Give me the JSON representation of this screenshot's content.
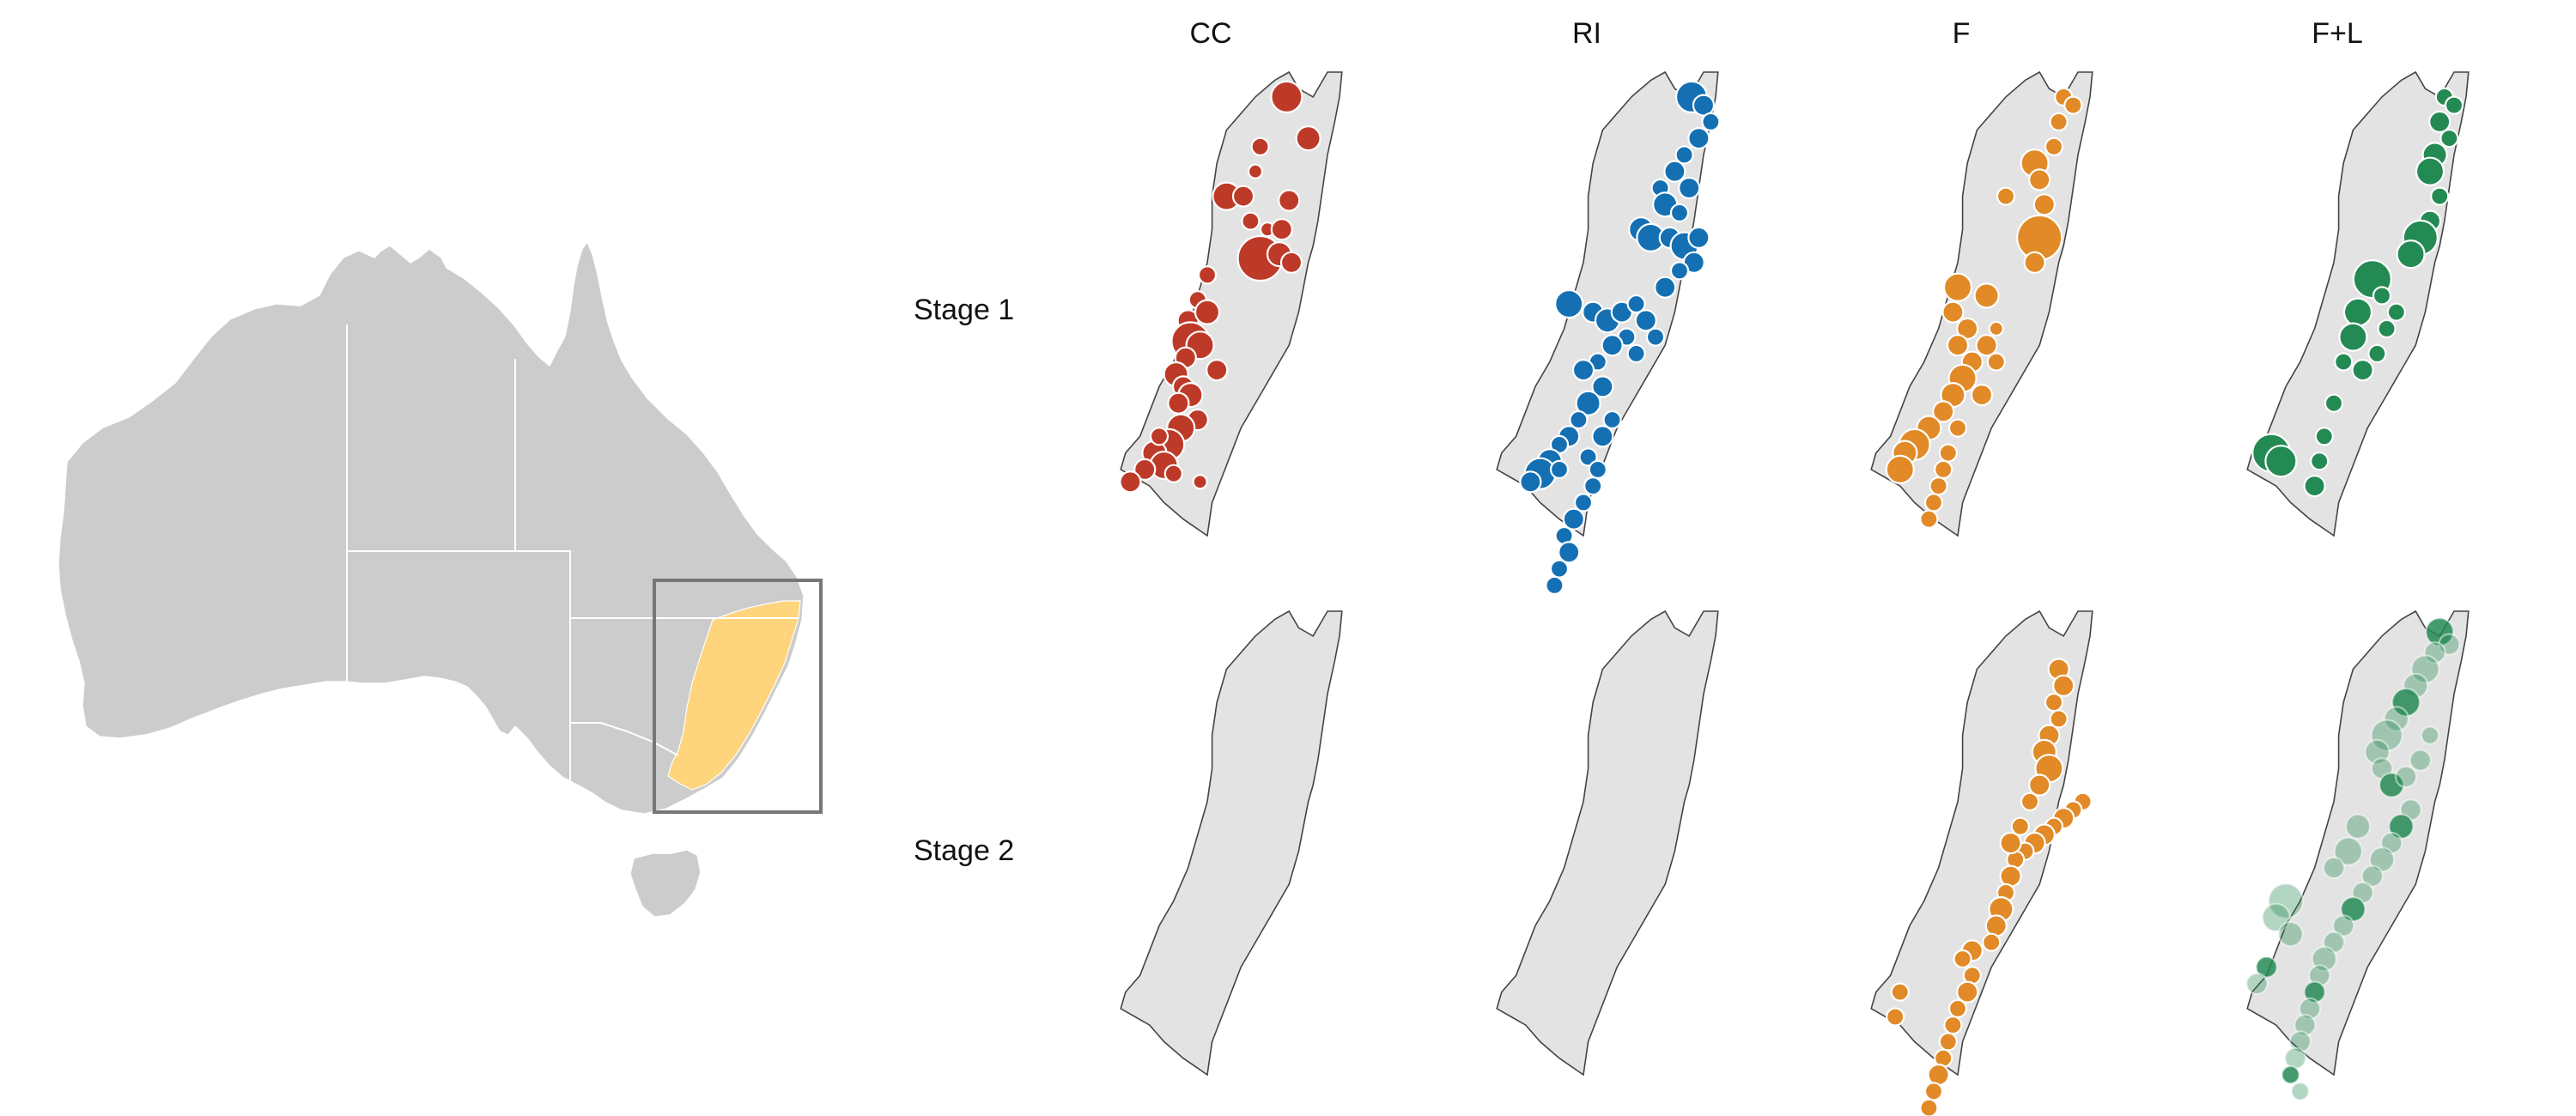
{
  "columns": [
    {
      "key": "cc",
      "label": "CC",
      "color": "#be3a28"
    },
    {
      "key": "ri",
      "label": "RI",
      "color": "#1470b3"
    },
    {
      "key": "f",
      "label": "F",
      "color": "#e18a27"
    },
    {
      "key": "fl",
      "label": "F+L",
      "color": "#248a53"
    }
  ],
  "rows": [
    {
      "key": "stage1",
      "label": "Stage 1"
    },
    {
      "key": "stage2",
      "label": "Stage 2"
    }
  ],
  "inset": {
    "highlight_color": "#fed47c",
    "land_color": "#cccccc",
    "box_color": "#777777"
  },
  "point_layers": {
    "stage1": {
      "cc": [
        [
          0.73,
          0.06,
          18
        ],
        [
          0.82,
          0.16,
          14
        ],
        [
          0.62,
          0.18,
          10
        ],
        [
          0.6,
          0.24,
          8
        ],
        [
          0.48,
          0.3,
          16
        ],
        [
          0.55,
          0.3,
          12
        ],
        [
          0.74,
          0.31,
          12
        ],
        [
          0.58,
          0.36,
          10
        ],
        [
          0.65,
          0.38,
          8
        ],
        [
          0.71,
          0.38,
          12
        ],
        [
          0.62,
          0.45,
          26
        ],
        [
          0.7,
          0.44,
          14
        ],
        [
          0.75,
          0.46,
          12
        ],
        [
          0.4,
          0.49,
          10
        ],
        [
          0.36,
          0.55,
          10
        ],
        [
          0.32,
          0.6,
          12
        ],
        [
          0.4,
          0.58,
          14
        ],
        [
          0.33,
          0.65,
          22
        ],
        [
          0.37,
          0.66,
          16
        ],
        [
          0.31,
          0.69,
          12
        ],
        [
          0.27,
          0.73,
          14
        ],
        [
          0.3,
          0.76,
          12
        ],
        [
          0.33,
          0.78,
          14
        ],
        [
          0.28,
          0.8,
          12
        ],
        [
          0.44,
          0.72,
          12
        ],
        [
          0.36,
          0.84,
          12
        ],
        [
          0.29,
          0.86,
          16
        ],
        [
          0.24,
          0.9,
          18
        ],
        [
          0.18,
          0.92,
          14
        ],
        [
          0.22,
          0.95,
          16
        ],
        [
          0.14,
          0.96,
          12
        ],
        [
          0.08,
          0.99,
          12
        ],
        [
          0.37,
          0.99,
          8
        ],
        [
          0.2,
          0.88,
          10
        ],
        [
          0.26,
          0.97,
          10
        ]
      ],
      "ri": [
        [
          0.85,
          0.06,
          18
        ],
        [
          0.9,
          0.08,
          12
        ],
        [
          0.93,
          0.12,
          10
        ],
        [
          0.88,
          0.16,
          12
        ],
        [
          0.82,
          0.2,
          10
        ],
        [
          0.78,
          0.24,
          12
        ],
        [
          0.72,
          0.28,
          10
        ],
        [
          0.74,
          0.32,
          14
        ],
        [
          0.84,
          0.28,
          12
        ],
        [
          0.8,
          0.34,
          10
        ],
        [
          0.64,
          0.38,
          14
        ],
        [
          0.68,
          0.4,
          16
        ],
        [
          0.76,
          0.4,
          12
        ],
        [
          0.82,
          0.42,
          16
        ],
        [
          0.88,
          0.4,
          12
        ],
        [
          0.86,
          0.46,
          12
        ],
        [
          0.8,
          0.48,
          10
        ],
        [
          0.74,
          0.52,
          12
        ],
        [
          0.34,
          0.56,
          16
        ],
        [
          0.44,
          0.58,
          12
        ],
        [
          0.5,
          0.6,
          14
        ],
        [
          0.56,
          0.58,
          12
        ],
        [
          0.62,
          0.56,
          10
        ],
        [
          0.66,
          0.6,
          12
        ],
        [
          0.58,
          0.64,
          10
        ],
        [
          0.52,
          0.66,
          12
        ],
        [
          0.46,
          0.7,
          10
        ],
        [
          0.4,
          0.72,
          12
        ],
        [
          0.48,
          0.76,
          12
        ],
        [
          0.42,
          0.8,
          14
        ],
        [
          0.38,
          0.84,
          10
        ],
        [
          0.34,
          0.88,
          12
        ],
        [
          0.3,
          0.9,
          10
        ],
        [
          0.26,
          0.94,
          14
        ],
        [
          0.22,
          0.97,
          18
        ],
        [
          0.18,
          0.99,
          12
        ],
        [
          0.3,
          0.96,
          10
        ],
        [
          0.42,
          0.93,
          10
        ],
        [
          0.48,
          0.88,
          12
        ],
        [
          0.52,
          0.84,
          10
        ],
        [
          0.46,
          0.96,
          10
        ],
        [
          0.44,
          1.0,
          10
        ],
        [
          0.4,
          1.04,
          10
        ],
        [
          0.36,
          1.08,
          12
        ],
        [
          0.32,
          1.12,
          10
        ],
        [
          0.34,
          1.16,
          12
        ],
        [
          0.3,
          1.2,
          10
        ],
        [
          0.28,
          1.24,
          10
        ],
        [
          0.62,
          0.68,
          10
        ],
        [
          0.7,
          0.64,
          10
        ]
      ],
      "f": [
        [
          0.84,
          0.06,
          10
        ],
        [
          0.88,
          0.08,
          10
        ],
        [
          0.82,
          0.12,
          10
        ],
        [
          0.8,
          0.18,
          10
        ],
        [
          0.72,
          0.22,
          16
        ],
        [
          0.74,
          0.26,
          12
        ],
        [
          0.6,
          0.3,
          10
        ],
        [
          0.76,
          0.32,
          12
        ],
        [
          0.74,
          0.4,
          26
        ],
        [
          0.72,
          0.46,
          12
        ],
        [
          0.4,
          0.52,
          16
        ],
        [
          0.52,
          0.54,
          14
        ],
        [
          0.38,
          0.58,
          12
        ],
        [
          0.44,
          0.62,
          12
        ],
        [
          0.4,
          0.66,
          12
        ],
        [
          0.46,
          0.7,
          12
        ],
        [
          0.42,
          0.74,
          16
        ],
        [
          0.38,
          0.78,
          14
        ],
        [
          0.34,
          0.82,
          12
        ],
        [
          0.28,
          0.86,
          14
        ],
        [
          0.22,
          0.9,
          18
        ],
        [
          0.18,
          0.92,
          14
        ],
        [
          0.16,
          0.96,
          16
        ],
        [
          0.5,
          0.78,
          12
        ],
        [
          0.52,
          0.66,
          12
        ],
        [
          0.56,
          0.7,
          10
        ],
        [
          0.4,
          0.86,
          10
        ],
        [
          0.36,
          0.92,
          10
        ],
        [
          0.34,
          0.96,
          10
        ],
        [
          0.32,
          1.0,
          10
        ],
        [
          0.3,
          1.04,
          10
        ],
        [
          0.28,
          1.08,
          10
        ],
        [
          0.56,
          0.62,
          8
        ]
      ],
      "fl": [
        [
          0.86,
          0.06,
          10
        ],
        [
          0.9,
          0.08,
          10
        ],
        [
          0.84,
          0.12,
          12
        ],
        [
          0.88,
          0.16,
          10
        ],
        [
          0.82,
          0.2,
          14
        ],
        [
          0.8,
          0.24,
          16
        ],
        [
          0.84,
          0.3,
          10
        ],
        [
          0.8,
          0.36,
          12
        ],
        [
          0.76,
          0.4,
          20
        ],
        [
          0.72,
          0.44,
          16
        ],
        [
          0.56,
          0.5,
          22
        ],
        [
          0.6,
          0.54,
          10
        ],
        [
          0.5,
          0.58,
          16
        ],
        [
          0.48,
          0.64,
          16
        ],
        [
          0.44,
          0.7,
          10
        ],
        [
          0.52,
          0.72,
          12
        ],
        [
          0.62,
          0.62,
          10
        ],
        [
          0.66,
          0.58,
          10
        ],
        [
          0.14,
          0.92,
          22
        ],
        [
          0.18,
          0.94,
          18
        ],
        [
          0.4,
          0.8,
          10
        ],
        [
          0.36,
          0.88,
          10
        ],
        [
          0.34,
          0.94,
          10
        ],
        [
          0.32,
          1.0,
          12
        ],
        [
          0.58,
          0.68,
          10
        ]
      ]
    },
    "stage2": {
      "cc": [],
      "ri": [],
      "f": [
        [
          0.82,
          0.14,
          12
        ],
        [
          0.84,
          0.18,
          12
        ],
        [
          0.8,
          0.22,
          10
        ],
        [
          0.82,
          0.26,
          10
        ],
        [
          0.78,
          0.3,
          12
        ],
        [
          0.76,
          0.34,
          14
        ],
        [
          0.78,
          0.38,
          16
        ],
        [
          0.74,
          0.42,
          12
        ],
        [
          0.7,
          0.46,
          10
        ],
        [
          0.92,
          0.46,
          10
        ],
        [
          0.88,
          0.48,
          10
        ],
        [
          0.84,
          0.5,
          12
        ],
        [
          0.8,
          0.52,
          10
        ],
        [
          0.76,
          0.54,
          12
        ],
        [
          0.72,
          0.56,
          12
        ],
        [
          0.68,
          0.58,
          10
        ],
        [
          0.64,
          0.6,
          10
        ],
        [
          0.62,
          0.64,
          12
        ],
        [
          0.6,
          0.68,
          10
        ],
        [
          0.58,
          0.72,
          14
        ],
        [
          0.56,
          0.76,
          12
        ],
        [
          0.54,
          0.8,
          10
        ],
        [
          0.46,
          0.82,
          12
        ],
        [
          0.42,
          0.84,
          10
        ],
        [
          0.46,
          0.88,
          10
        ],
        [
          0.44,
          0.92,
          12
        ],
        [
          0.4,
          0.96,
          10
        ],
        [
          0.38,
          1.0,
          10
        ],
        [
          0.36,
          1.04,
          10
        ],
        [
          0.34,
          1.08,
          10
        ],
        [
          0.32,
          1.12,
          12
        ],
        [
          0.3,
          1.16,
          10
        ],
        [
          0.28,
          1.2,
          10
        ],
        [
          0.16,
          0.92,
          10
        ],
        [
          0.14,
          0.98,
          10
        ],
        [
          0.66,
          0.52,
          10
        ],
        [
          0.62,
          0.56,
          12
        ]
      ],
      "fl": [
        [
          0.84,
          0.05,
          16
        ],
        [
          0.88,
          0.08,
          12
        ],
        [
          0.82,
          0.1,
          12
        ],
        [
          0.78,
          0.14,
          16
        ],
        [
          0.74,
          0.18,
          14
        ],
        [
          0.7,
          0.22,
          16
        ],
        [
          0.66,
          0.26,
          14
        ],
        [
          0.62,
          0.3,
          18
        ],
        [
          0.58,
          0.34,
          14
        ],
        [
          0.6,
          0.38,
          12
        ],
        [
          0.64,
          0.42,
          14
        ],
        [
          0.7,
          0.4,
          12
        ],
        [
          0.76,
          0.36,
          12
        ],
        [
          0.8,
          0.3,
          10
        ],
        [
          0.72,
          0.48,
          12
        ],
        [
          0.68,
          0.52,
          14
        ],
        [
          0.64,
          0.56,
          12
        ],
        [
          0.6,
          0.6,
          14
        ],
        [
          0.56,
          0.64,
          12
        ],
        [
          0.52,
          0.68,
          12
        ],
        [
          0.48,
          0.72,
          14
        ],
        [
          0.44,
          0.76,
          12
        ],
        [
          0.4,
          0.8,
          12
        ],
        [
          0.36,
          0.84,
          14
        ],
        [
          0.34,
          0.88,
          12
        ],
        [
          0.32,
          0.92,
          12
        ],
        [
          0.3,
          0.96,
          12
        ],
        [
          0.28,
          1.0,
          12
        ],
        [
          0.26,
          1.04,
          12
        ],
        [
          0.24,
          1.08,
          12
        ],
        [
          0.22,
          1.12,
          10
        ],
        [
          0.26,
          1.16,
          10
        ],
        [
          0.2,
          0.7,
          20
        ],
        [
          0.16,
          0.74,
          16
        ],
        [
          0.22,
          0.78,
          14
        ],
        [
          0.12,
          0.86,
          12
        ],
        [
          0.08,
          0.9,
          12
        ],
        [
          0.46,
          0.58,
          16
        ],
        [
          0.5,
          0.52,
          14
        ],
        [
          0.4,
          0.62,
          12
        ]
      ]
    }
  }
}
